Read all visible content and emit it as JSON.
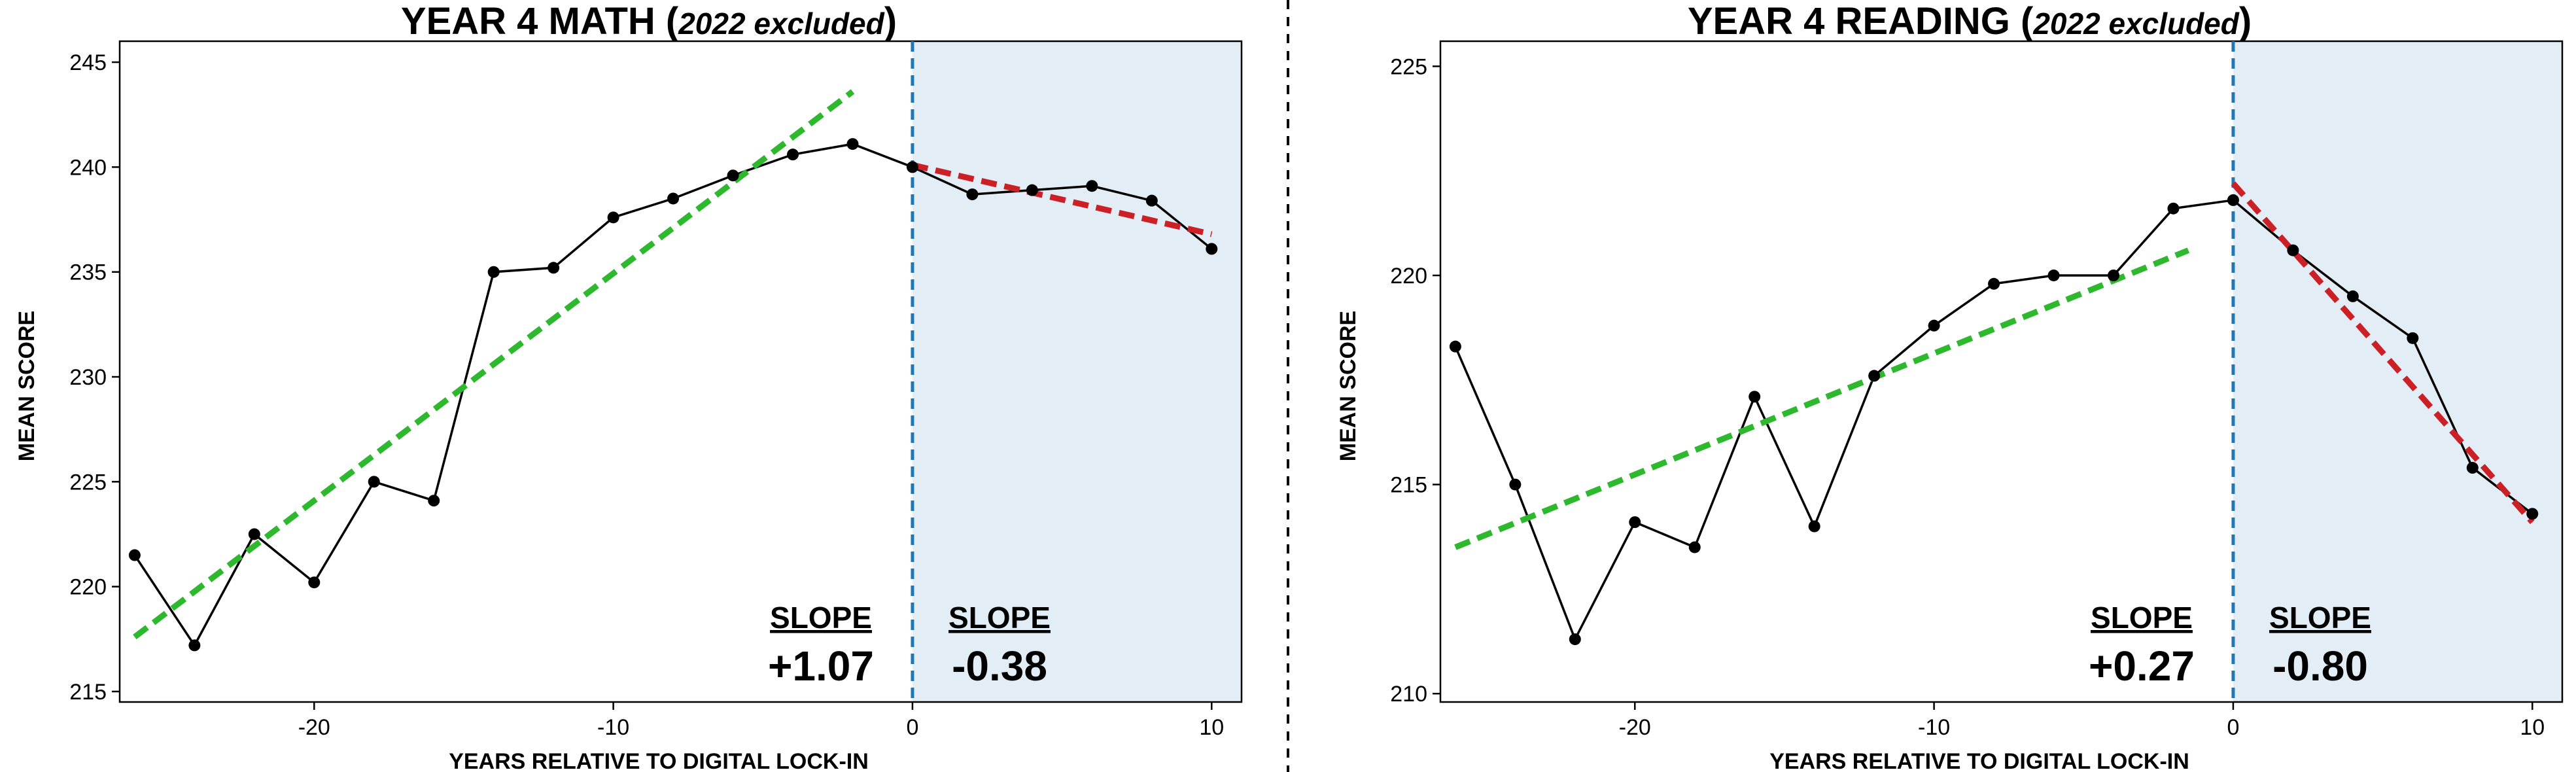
{
  "chart_data": [
    {
      "type": "line",
      "title": "YEAR 4 MATH (",
      "title_italic": "2022 excluded",
      "title_suffix": ")",
      "xlabel": "YEARS RELATIVE TO DIGITAL LOCK-IN",
      "ylabel": "MEAN SCORE",
      "xlim": [
        -26.5,
        11
      ],
      "ylim": [
        214.5,
        246
      ],
      "xticks": [
        -20,
        -10,
        0,
        10
      ],
      "yticks": [
        215,
        220,
        225,
        230,
        235,
        240,
        245
      ],
      "grid": false,
      "series": [
        {
          "x": [
            -26,
            -24,
            -22,
            -20,
            -18,
            -16,
            -14,
            -12,
            -10,
            -8,
            -6,
            -4,
            -2,
            0,
            2,
            4,
            6,
            8,
            10
          ],
          "y": [
            221.5,
            217.2,
            222.5,
            220.2,
            225.0,
            224.1,
            235.0,
            235.2,
            237.6,
            238.5,
            239.6,
            240.6,
            241.1,
            240.0,
            238.7,
            238.9,
            239.1,
            238.4,
            236.1
          ],
          "color": "#000000"
        }
      ],
      "trend_pre": {
        "x": [
          -26,
          -2
        ],
        "y": [
          217.6,
          243.6
        ],
        "color": "#2db82d"
      },
      "trend_post": {
        "x": [
          0,
          10
        ],
        "y": [
          240.1,
          236.8
        ],
        "color": "#cc2027"
      },
      "cutoff_x": 0,
      "shade_color": "#e2edf5",
      "cutoff_color": "#1f77b4",
      "slope_pre": {
        "heading": "SLOPE",
        "value": "+1.07"
      },
      "slope_post": {
        "heading": "SLOPE",
        "value": "-0.38"
      }
    },
    {
      "type": "line",
      "title": "YEAR 4 READING (",
      "title_italic": "2022 excluded",
      "title_suffix": ")",
      "xlabel": "YEARS RELATIVE TO DIGITAL LOCK-IN",
      "ylabel": "MEAN SCORE",
      "xlim": [
        -26.5,
        11
      ],
      "ylim": [
        209.8,
        225.6
      ],
      "xticks": [
        -20,
        -10,
        0,
        10
      ],
      "yticks": [
        210,
        215,
        220,
        225
      ],
      "grid": false,
      "series": [
        {
          "x": [
            -26,
            -24,
            -22,
            -20,
            -18,
            -16,
            -14,
            -12,
            -10,
            -8,
            -6,
            -4,
            -2,
            0,
            2,
            4,
            6,
            8,
            10
          ],
          "y": [
            218.3,
            215.0,
            211.3,
            214.1,
            213.5,
            217.1,
            214.0,
            217.6,
            218.8,
            219.8,
            220.0,
            220.0,
            221.6,
            221.8,
            220.6,
            219.5,
            218.5,
            215.4,
            214.3
          ],
          "color": "#000000"
        }
      ],
      "trend_pre": {
        "x": [
          -26,
          -1.5
        ],
        "y": [
          213.5,
          220.6
        ],
        "color": "#2db82d"
      },
      "trend_post": {
        "x": [
          0,
          10
        ],
        "y": [
          222.2,
          214.1
        ],
        "color": "#cc2027"
      },
      "cutoff_x": 0,
      "shade_color": "#e2edf5",
      "cutoff_color": "#1f77b4",
      "slope_pre": {
        "heading": "SLOPE",
        "value": "+0.27"
      },
      "slope_post": {
        "heading": "SLOPE",
        "value": "-0.80"
      }
    }
  ]
}
